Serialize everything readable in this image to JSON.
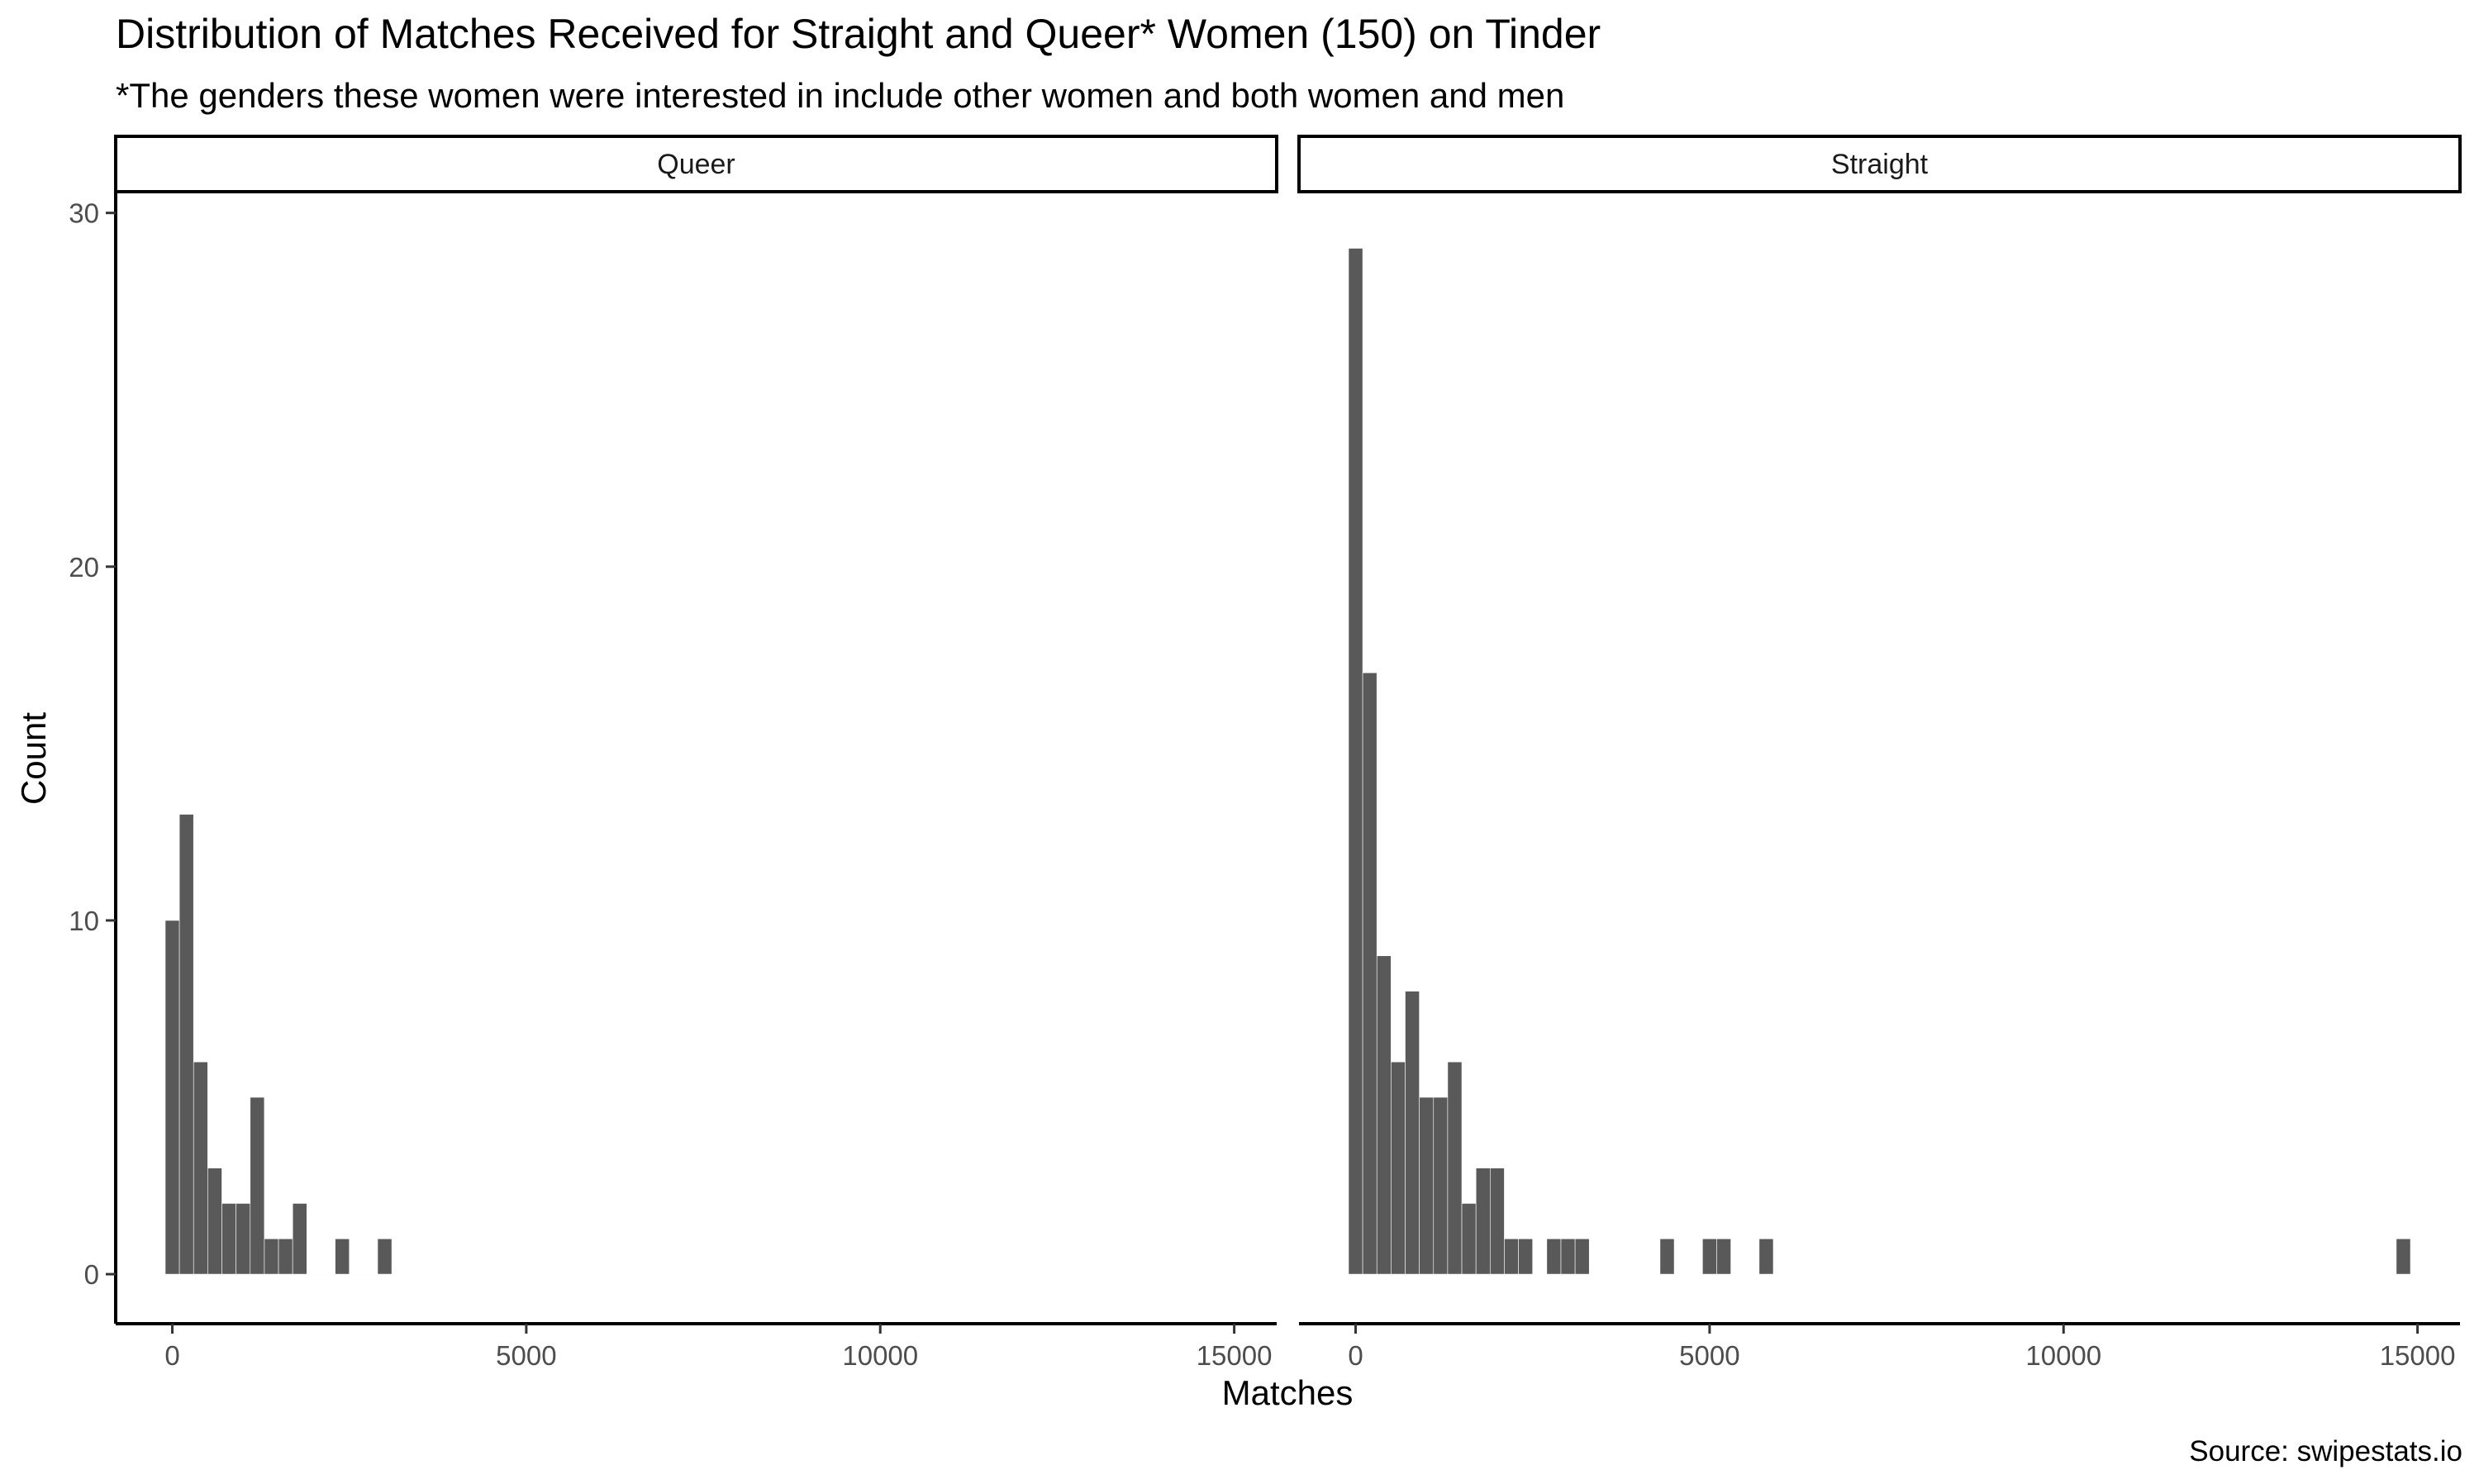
{
  "chart_data": {
    "type": "bar",
    "title": "Distribution of Matches Received for Straight and Queer* Women (150) on Tinder",
    "subtitle": "*The genders these women were interested in include other women and both women and men",
    "xlabel": "Matches",
    "ylabel": "Count",
    "caption": "Source: swipestats.io",
    "xlim": [
      -800,
      15600
    ],
    "ylim": [
      -1.4,
      30.6
    ],
    "x_ticks": [
      0,
      5000,
      10000,
      15000
    ],
    "x_tick_labels": [
      "0",
      "5000",
      "10000",
      "15000"
    ],
    "y_ticks": [
      0,
      10,
      20,
      30
    ],
    "y_tick_labels": [
      "0",
      "10",
      "20",
      "30"
    ],
    "bin_width": 200,
    "bar_color": "#595959",
    "panels": [
      {
        "name": "Queer",
        "bins": [
          {
            "x": 0,
            "count": 10
          },
          {
            "x": 200,
            "count": 13
          },
          {
            "x": 400,
            "count": 6
          },
          {
            "x": 600,
            "count": 3
          },
          {
            "x": 800,
            "count": 2
          },
          {
            "x": 1000,
            "count": 2
          },
          {
            "x": 1200,
            "count": 5
          },
          {
            "x": 1400,
            "count": 1
          },
          {
            "x": 1600,
            "count": 1
          },
          {
            "x": 1800,
            "count": 2
          },
          {
            "x": 2000,
            "count": 0
          },
          {
            "x": 2200,
            "count": 0
          },
          {
            "x": 2400,
            "count": 1
          },
          {
            "x": 2600,
            "count": 0
          },
          {
            "x": 2800,
            "count": 0
          },
          {
            "x": 3000,
            "count": 1
          }
        ]
      },
      {
        "name": "Straight",
        "bins": [
          {
            "x": 0,
            "count": 29
          },
          {
            "x": 200,
            "count": 17
          },
          {
            "x": 400,
            "count": 9
          },
          {
            "x": 600,
            "count": 6
          },
          {
            "x": 800,
            "count": 8
          },
          {
            "x": 1000,
            "count": 5
          },
          {
            "x": 1200,
            "count": 5
          },
          {
            "x": 1400,
            "count": 6
          },
          {
            "x": 1600,
            "count": 2
          },
          {
            "x": 1800,
            "count": 3
          },
          {
            "x": 2000,
            "count": 3
          },
          {
            "x": 2200,
            "count": 1
          },
          {
            "x": 2400,
            "count": 1
          },
          {
            "x": 2600,
            "count": 0
          },
          {
            "x": 2800,
            "count": 1
          },
          {
            "x": 3000,
            "count": 1
          },
          {
            "x": 3200,
            "count": 1
          },
          {
            "x": 4400,
            "count": 1
          },
          {
            "x": 5000,
            "count": 1
          },
          {
            "x": 5200,
            "count": 1
          },
          {
            "x": 5800,
            "count": 1
          },
          {
            "x": 14800,
            "count": 1
          }
        ]
      }
    ]
  }
}
